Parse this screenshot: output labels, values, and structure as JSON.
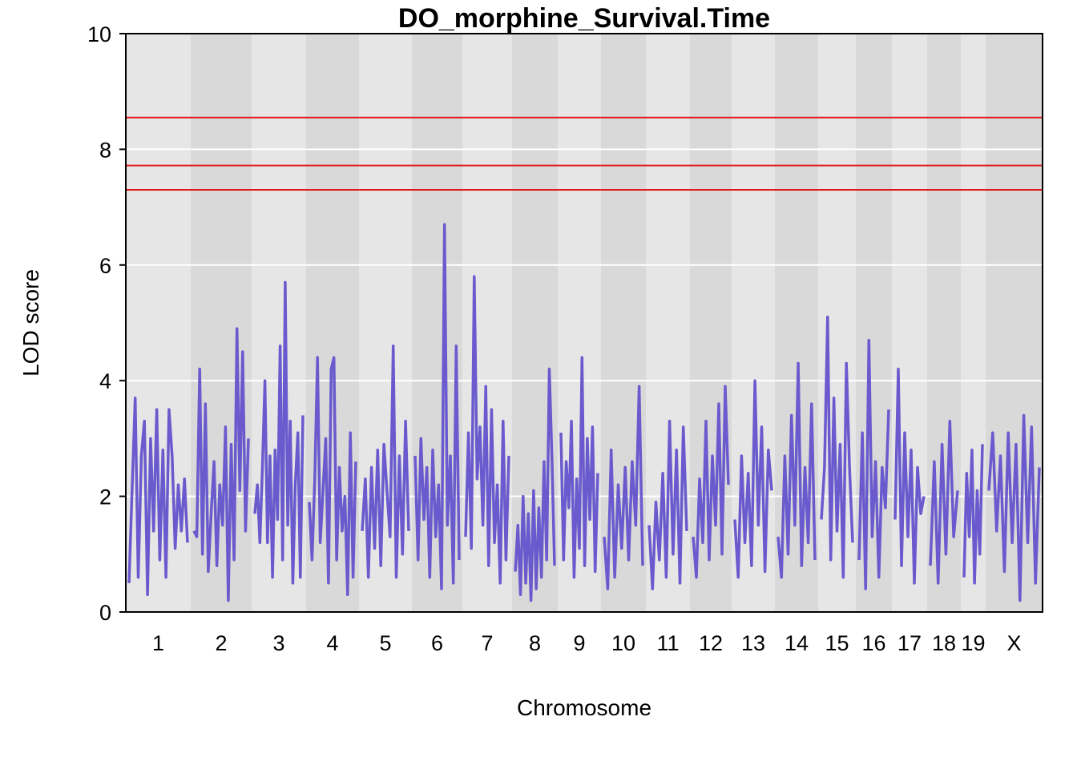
{
  "chart_data": {
    "type": "line",
    "title": "DO_morphine_Survival.Time",
    "xlabel": "Chromosome",
    "ylabel": "LOD score",
    "ylim": [
      0,
      10
    ],
    "yticks": [
      0,
      2,
      4,
      6,
      8,
      10
    ],
    "grid": true,
    "legend": "none",
    "chromosomes": [
      "1",
      "2",
      "3",
      "4",
      "5",
      "6",
      "7",
      "8",
      "9",
      "10",
      "11",
      "12",
      "13",
      "14",
      "15",
      "16",
      "17",
      "18",
      "19",
      "X"
    ],
    "thresholds": [
      8.55,
      7.72,
      7.3
    ],
    "series": [
      {
        "values": [
          [
            0.5,
            2.1,
            3.7,
            0.6,
            2.7,
            3.3,
            0.3,
            3.0,
            1.4,
            3.5,
            0.9,
            2.8,
            0.6,
            3.5,
            2.7,
            1.1,
            2.2,
            1.4,
            2.3,
            1.2
          ],
          [
            1.4,
            1.3,
            4.2,
            1.0,
            3.6,
            0.7,
            1.7,
            2.6,
            0.8,
            2.2,
            1.5,
            3.2,
            0.2,
            2.9,
            0.9,
            4.9,
            2.1,
            4.5,
            1.4,
            3.0
          ],
          [
            1.7,
            2.2,
            1.2,
            2.5,
            4.0,
            1.2,
            2.7,
            0.6,
            2.8,
            1.6,
            4.6,
            0.9,
            5.7,
            1.5,
            3.3,
            0.5,
            2.2,
            3.1,
            0.6,
            3.4
          ],
          [
            1.9,
            0.9,
            2.3,
            4.4,
            1.2,
            2.1,
            3.0,
            0.5,
            4.2,
            4.4,
            0.9,
            2.5,
            1.4,
            2.0,
            0.3,
            3.1,
            0.6,
            2.6
          ],
          [
            1.4,
            2.3,
            0.6,
            2.5,
            1.1,
            2.8,
            0.8,
            2.9,
            2.1,
            1.3,
            4.6,
            0.6,
            2.7,
            1.0,
            3.3,
            1.4
          ],
          [
            2.7,
            0.9,
            3.0,
            1.6,
            2.5,
            0.6,
            2.8,
            1.3,
            2.2,
            0.4,
            6.7,
            1.5,
            2.7,
            0.5,
            4.6,
            0.9
          ],
          [
            1.3,
            3.1,
            1.1,
            5.8,
            2.3,
            3.2,
            1.5,
            3.9,
            0.8,
            3.5,
            1.2,
            2.2,
            0.5,
            3.3,
            0.9,
            2.7
          ],
          [
            0.7,
            1.5,
            0.3,
            2.0,
            0.5,
            1.7,
            0.2,
            2.1,
            0.4,
            1.8,
            0.6,
            2.6,
            0.9,
            4.2,
            2.7,
            0.8
          ],
          [
            3.1,
            0.9,
            2.6,
            1.8,
            3.3,
            0.6,
            2.3,
            1.1,
            4.4,
            0.8,
            3.0,
            1.6,
            3.2,
            0.7,
            2.4
          ],
          [
            1.3,
            0.4,
            2.8,
            0.6,
            2.2,
            1.1,
            2.5,
            0.9,
            2.6,
            1.5,
            3.9,
            0.8
          ],
          [
            1.5,
            0.4,
            1.9,
            0.9,
            2.4,
            0.6,
            3.3,
            1.0,
            2.8,
            0.5,
            3.2,
            1.4
          ],
          [
            1.3,
            0.6,
            2.3,
            1.2,
            3.3,
            0.9,
            2.7,
            1.5,
            3.6,
            1.0,
            3.9,
            2.2
          ],
          [
            1.6,
            0.6,
            2.7,
            1.2,
            2.4,
            0.8,
            4.0,
            1.5,
            3.2,
            0.7,
            2.8,
            2.1
          ],
          [
            1.3,
            0.6,
            2.7,
            1.0,
            3.4,
            1.5,
            4.3,
            0.8,
            2.5,
            1.2,
            3.6,
            0.9
          ],
          [
            1.6,
            2.5,
            5.1,
            0.9,
            3.7,
            1.4,
            2.9,
            0.6,
            4.3,
            2.5,
            1.2
          ],
          [
            0.9,
            3.1,
            0.4,
            4.7,
            1.3,
            2.6,
            0.6,
            2.5,
            1.8,
            3.5
          ],
          [
            1.6,
            4.2,
            0.8,
            3.1,
            1.3,
            2.8,
            0.5,
            2.5,
            1.7,
            2.0
          ],
          [
            0.8,
            2.6,
            0.5,
            2.9,
            1.0,
            3.3,
            1.3,
            2.1
          ],
          [
            0.6,
            2.4,
            1.3,
            2.8,
            0.5,
            2.1,
            1.0,
            2.9
          ],
          [
            2.1,
            3.1,
            1.4,
            2.7,
            0.7,
            3.1,
            1.2,
            2.9,
            0.2,
            3.4,
            1.2,
            3.2,
            0.5,
            2.5
          ]
        ]
      }
    ]
  }
}
